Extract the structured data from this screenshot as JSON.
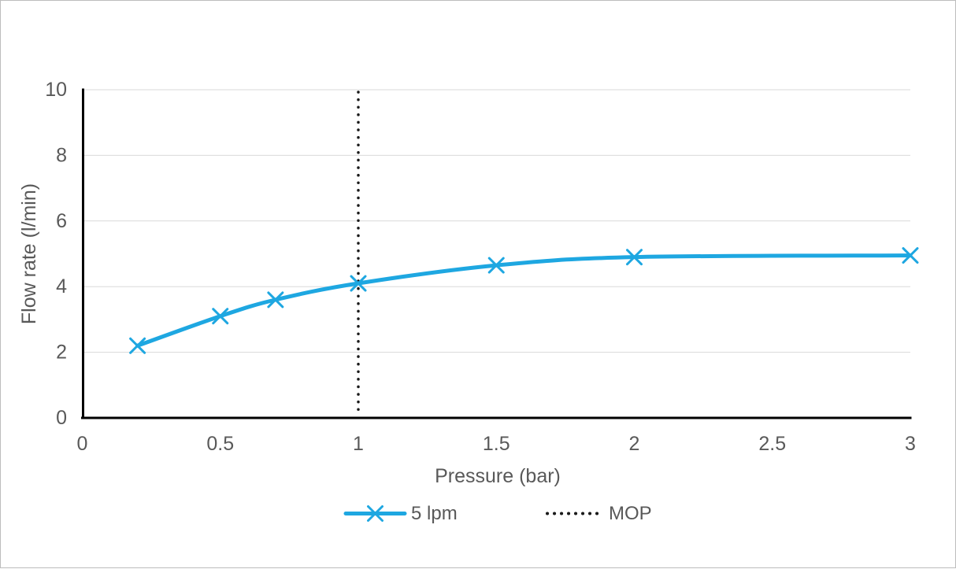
{
  "figure": {
    "background": "#ffffff",
    "border_color": "#bdbdbd",
    "text_color": "#595959",
    "gridline_color": "#d9d9d9",
    "axis_color": "#000000"
  },
  "chart_data": {
    "type": "line",
    "title": "",
    "xlabel": "Pressure (bar)",
    "ylabel": "Flow rate (l/min)",
    "xlim": [
      0,
      3
    ],
    "ylim": [
      0,
      10
    ],
    "x_tick_labels": [
      "0",
      "0.5",
      "1",
      "1.5",
      "2",
      "2.5",
      "3"
    ],
    "x_tick_values": [
      0,
      0.5,
      1,
      1.5,
      2,
      2.5,
      3
    ],
    "y_tick_labels": [
      "0",
      "2",
      "4",
      "6",
      "8",
      "10"
    ],
    "y_tick_values": [
      0,
      2,
      4,
      6,
      8,
      10
    ],
    "grid": "horizontal-only",
    "series": [
      {
        "name": "5 lpm",
        "style": "smooth-line",
        "marker": "x",
        "color": "#1ea7e1",
        "x": [
          0.2,
          0.5,
          0.7,
          1,
          1.5,
          2,
          3
        ],
        "y": [
          2.2,
          3.1,
          3.6,
          4.1,
          4.65,
          4.9,
          4.95
        ]
      }
    ],
    "annotations": [
      {
        "name": "MOP",
        "type": "vline",
        "x": 1,
        "style": "dotted",
        "color": "#1a1a1a"
      }
    ],
    "legend": {
      "position": "bottom-center",
      "items": [
        "5 lpm",
        "MOP"
      ]
    }
  }
}
